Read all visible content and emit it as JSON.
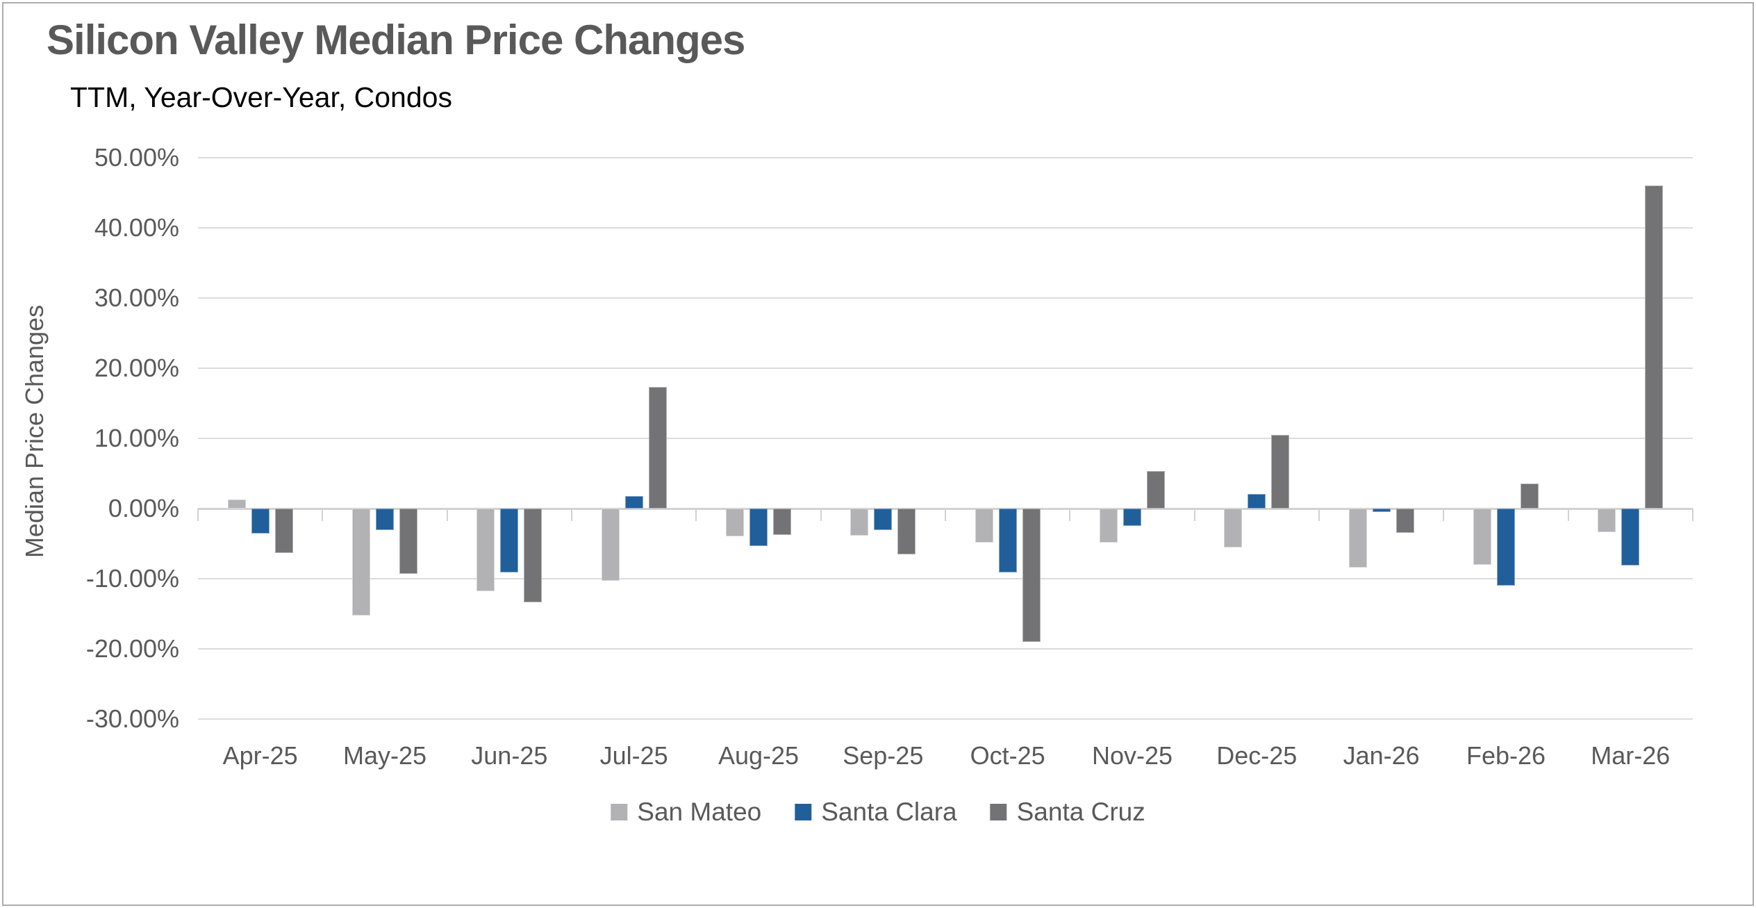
{
  "chart_data": {
    "type": "bar",
    "title": "Silicon Valley Median Price Changes",
    "subtitle": "TTM, Year-Over-Year, Condos",
    "ylabel": "Median Price Changes",
    "xlabel": "",
    "categories": [
      "Apr-25",
      "May-25",
      "Jun-25",
      "Jul-25",
      "Aug-25",
      "Sep-25",
      "Oct-25",
      "Nov-25",
      "Dec-25",
      "Jan-26",
      "Feb-26",
      "Mar-26"
    ],
    "series": [
      {
        "name": "San Mateo",
        "color": "#B2B2B5",
        "values": [
          1.3,
          -15.2,
          -11.8,
          -10.3,
          -4.0,
          -3.9,
          -4.9,
          -4.9,
          -5.5,
          -8.4,
          -8.0,
          -3.4
        ]
      },
      {
        "name": "Santa Clara",
        "color": "#215F9B",
        "values": [
          -3.6,
          -3.1,
          -9.1,
          1.8,
          -5.3,
          -3.1,
          -9.1,
          -2.5,
          2.1,
          -0.5,
          -11.0,
          -8.1
        ]
      },
      {
        "name": "Santa Cruz",
        "color": "#737376",
        "values": [
          -6.3,
          -9.3,
          -13.4,
          17.3,
          -3.8,
          -6.5,
          -19.0,
          5.3,
          10.5,
          -3.5,
          3.6,
          46.0
        ]
      }
    ],
    "ylim": [
      -30,
      50
    ],
    "yticks": [
      50,
      40,
      30,
      20,
      10,
      0,
      -10,
      -20,
      -30
    ],
    "ytick_format": "percent-2dp",
    "grid": true,
    "legend_position": "bottom"
  },
  "colors": {
    "gridline": "#DCDCDC",
    "zero_axis": "#D2D2D2",
    "axis_text": "#595959",
    "title_text": "#595959",
    "subtitle_text": "#000000",
    "frame_border": "#ABABAB",
    "background": "#FFFFFF"
  }
}
